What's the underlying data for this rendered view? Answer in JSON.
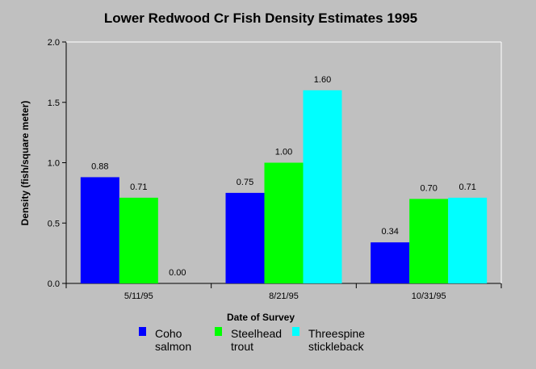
{
  "chart_data": {
    "type": "bar",
    "title": "Lower Redwood Cr Fish Density Estimates 1995",
    "xlabel": "Date of Survey",
    "ylabel": "Density (fish/square meter)",
    "ylim": [
      0,
      2.0
    ],
    "yticks": [
      "0.0",
      "0.5",
      "1.0",
      "1.5",
      "2.0"
    ],
    "categories": [
      "5/11/95",
      "8/21/95",
      "10/31/95"
    ],
    "series": [
      {
        "name": "Coho salmon",
        "legend_lines": [
          "Coho",
          "salmon"
        ],
        "color": "#0000ff",
        "values": [
          0.88,
          0.75,
          0.34
        ],
        "labels": [
          "0.88",
          "0.75",
          "0.34"
        ]
      },
      {
        "name": "Steelhead trout",
        "legend_lines": [
          "Steelhead",
          "trout"
        ],
        "color": "#00ff00",
        "values": [
          0.71,
          1.0,
          0.7
        ],
        "labels": [
          "0.71",
          "1.00",
          "0.70"
        ]
      },
      {
        "name": "Threespine stickleback",
        "legend_lines": [
          "Threespine",
          "stickleback"
        ],
        "color": "#00ffff",
        "values": [
          0.0,
          1.6,
          0.71
        ],
        "labels": [
          "0.00",
          "1.60",
          "0.71"
        ]
      }
    ],
    "grid": false,
    "legend": "bottom",
    "background_color": "#c0c0c0"
  }
}
